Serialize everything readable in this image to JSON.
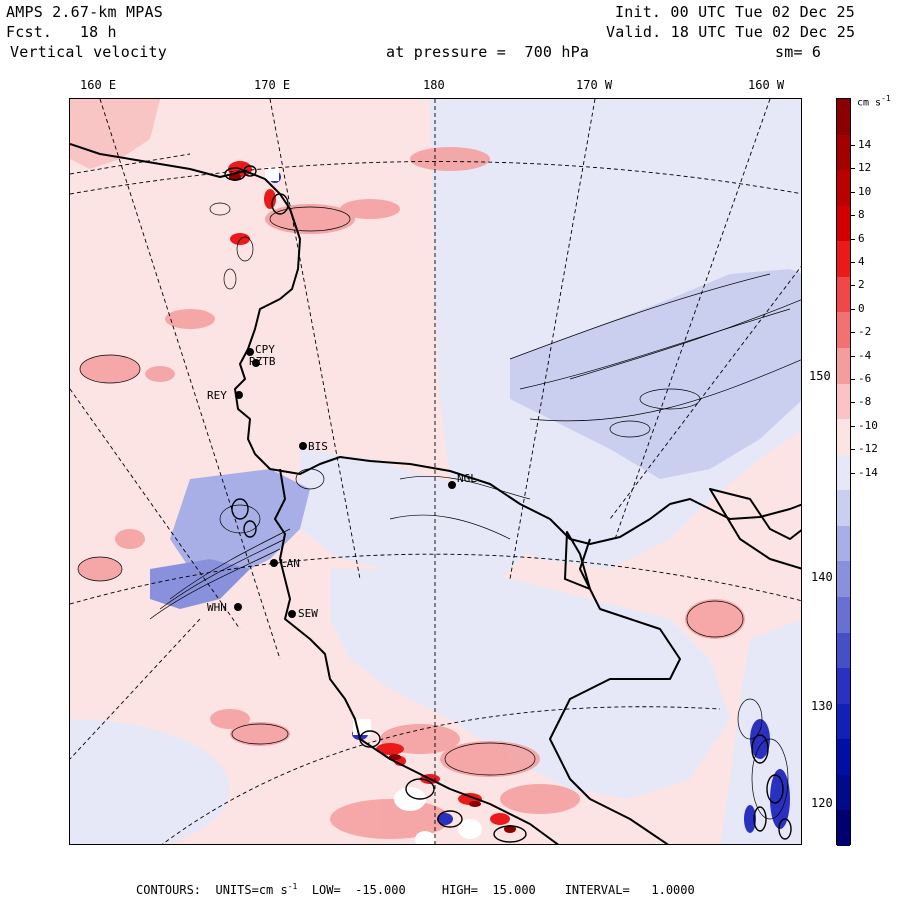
{
  "header": {
    "model": "AMPS 2.67-km MPAS",
    "fcst_label": "Fcst.",
    "fcst_value": "18 h",
    "field": "Vertical velocity",
    "init": "Init. 00 UTC Tue 02 Dec 25",
    "valid": "Valid. 18 UTC Tue 02 Dec 25",
    "pressure": "at pressure =  700 hPa",
    "smoothing": "sm= 6"
  },
  "lon_labels": [
    "160 E",
    "170 E",
    "180",
    "170 W",
    "160 W"
  ],
  "lat_labels": [
    "150 W",
    "140 W",
    "130 W",
    "120 W"
  ],
  "stations": [
    "CPY",
    "RZTB",
    "REY",
    "BIS",
    "LAN",
    "WHN",
    "SEW",
    "NGL"
  ],
  "colorbar": {
    "units": "cm s",
    "units_exp": "-1",
    "ticks": [
      "14",
      "12",
      "10",
      "8",
      "6",
      "4",
      "2",
      "0",
      "-2",
      "-4",
      "-6",
      "-8",
      "-10",
      "-12",
      "-14"
    ],
    "colors": [
      "#8b0000",
      "#a30000",
      "#bb0000",
      "#d40000",
      "#ea1a1a",
      "#f04848",
      "#f27272",
      "#f59c9c",
      "#f8c4c4",
      "#fbe4e3",
      "#e6e8f7",
      "#cacff0",
      "#a8afe6",
      "#8a91dc",
      "#6870d1",
      "#4650c6",
      "#2a30c0",
      "#1020b8",
      "#0010a4",
      "#000a8a",
      "#00006e"
    ]
  },
  "footer": {
    "label": "CONTOURS:  UNITS=cm s",
    "units_exp": "-1",
    "low": "LOW=  -15.000",
    "high": "HIGH=  15.000",
    "interval": "INTERVAL=   1.0000"
  }
}
